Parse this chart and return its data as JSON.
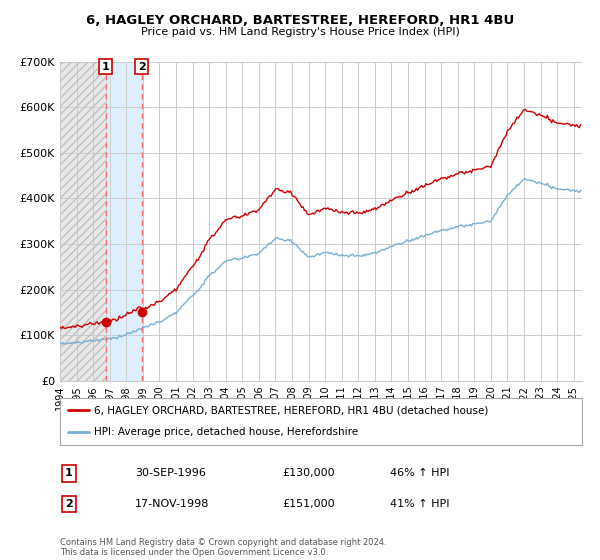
{
  "title": "6, HAGLEY ORCHARD, BARTESTREE, HEREFORD, HR1 4BU",
  "subtitle": "Price paid vs. HM Land Registry's House Price Index (HPI)",
  "xlim_start": 1994.0,
  "xlim_end": 2025.5,
  "ylim": [
    0,
    700000
  ],
  "yticks": [
    0,
    100000,
    200000,
    300000,
    400000,
    500000,
    600000,
    700000
  ],
  "ytick_labels": [
    "£0",
    "£100K",
    "£200K",
    "£300K",
    "£400K",
    "£500K",
    "£600K",
    "£700K"
  ],
  "legend_line1": "6, HAGLEY ORCHARD, BARTESTREE, HEREFORD, HR1 4BU (detached house)",
  "legend_line2": "HPI: Average price, detached house, Herefordshire",
  "transaction1_label": "1",
  "transaction1_date": "30-SEP-1996",
  "transaction1_price": "£130,000",
  "transaction1_hpi": "46% ↑ HPI",
  "transaction1_x": 1996.75,
  "transaction1_y": 130000,
  "transaction2_label": "2",
  "transaction2_date": "17-NOV-1998",
  "transaction2_price": "£151,000",
  "transaction2_hpi": "41% ↑ HPI",
  "transaction2_x": 1998.92,
  "transaction2_y": 151000,
  "line_color_red": "#cc0000",
  "line_color_blue": "#7ab0d4",
  "footer_text": "Contains HM Land Registry data © Crown copyright and database right 2024.\nThis data is licensed under the Open Government Licence v3.0.",
  "background_color": "#ffffff",
  "plot_bg_color": "#ffffff",
  "grid_color": "#cccccc",
  "hatch_color": "#bbbbbb",
  "shade_between_color": "#ddeeff"
}
